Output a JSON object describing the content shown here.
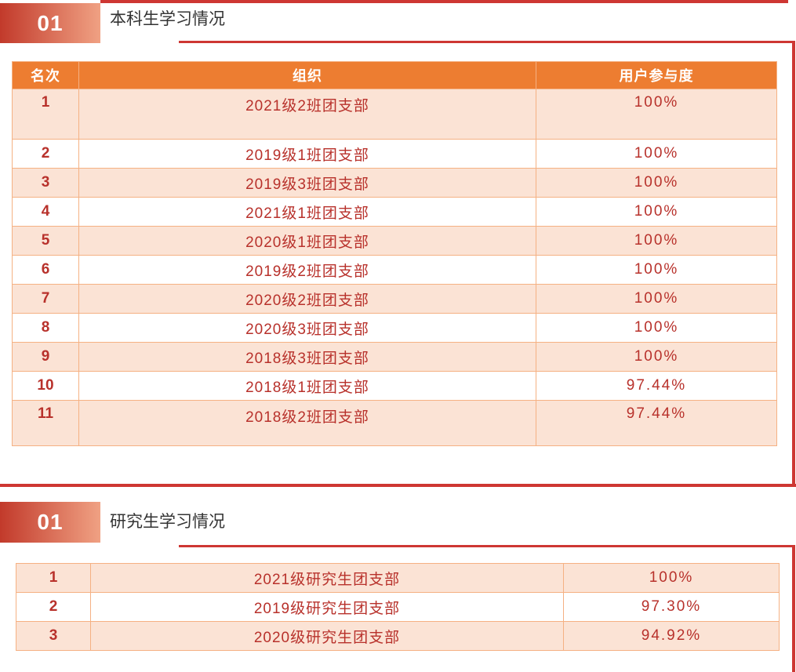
{
  "theme": {
    "header_bg": "#ED7D31",
    "row_alt_bg": "#FBE3D5",
    "cell_border": "#F5B183",
    "text_red": "#B8312B",
    "line_red": "#CE3733",
    "badge_grad_start": "#C23A2B",
    "badge_grad_end": "#F0A183",
    "title_color": "#333333"
  },
  "sections": [
    {
      "badge": "01",
      "title": "本科生学习情况",
      "table": {
        "headers": [
          "名次",
          "组织",
          "用户参与度"
        ],
        "rows": [
          {
            "rank": "1",
            "org": "2021级2班团支部",
            "participation": "100%"
          },
          {
            "rank": "2",
            "org": "2019级1班团支部",
            "participation": "100%"
          },
          {
            "rank": "3",
            "org": "2019级3班团支部",
            "participation": "100%"
          },
          {
            "rank": "4",
            "org": "2021级1班团支部",
            "participation": "100%"
          },
          {
            "rank": "5",
            "org": "2020级1班团支部",
            "participation": "100%"
          },
          {
            "rank": "6",
            "org": "2019级2班团支部",
            "participation": "100%"
          },
          {
            "rank": "7",
            "org": "2020级2班团支部",
            "participation": "100%"
          },
          {
            "rank": "8",
            "org": "2020级3班团支部",
            "participation": "100%"
          },
          {
            "rank": "9",
            "org": "2018级3班团支部",
            "participation": "100%"
          },
          {
            "rank": "10",
            "org": "2018级1班团支部",
            "participation": "97.44%"
          },
          {
            "rank": "11",
            "org": "2018级2班团支部",
            "participation": "97.44%"
          }
        ]
      }
    },
    {
      "badge": "01",
      "title": "研究生学习情况",
      "table": {
        "rows": [
          {
            "rank": "1",
            "org": "2021级研究生团支部",
            "participation": "100%"
          },
          {
            "rank": "2",
            "org": "2019级研究生团支部",
            "participation": "97.30%"
          },
          {
            "rank": "3",
            "org": "2020级研究生团支部",
            "participation": "94.92%"
          }
        ]
      }
    }
  ]
}
